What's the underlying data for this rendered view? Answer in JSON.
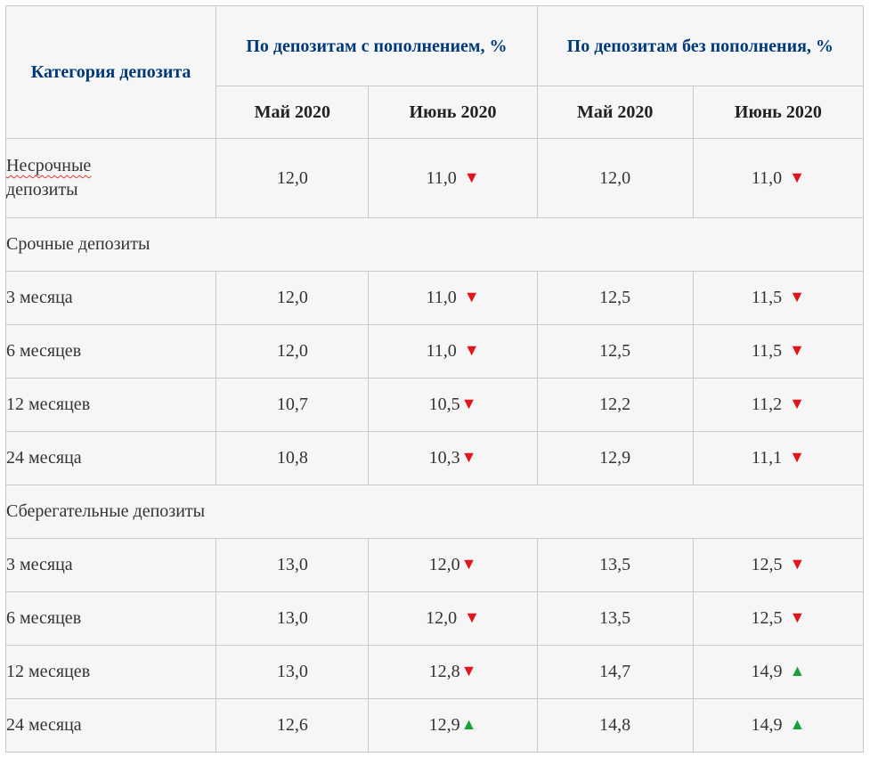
{
  "header": {
    "category": "Категория депозита",
    "group_with": "По депозитам с пополнением, %",
    "group_without": "По депозитам без пополнения, %",
    "may": "Май 2020",
    "june": "Июнь 2020"
  },
  "arrows": {
    "down": "▼",
    "up": "▲"
  },
  "colors": {
    "header_text": "#003a7a",
    "down": "#e3141a",
    "up": "#17a33c",
    "cell_bg": "#f6f6f6",
    "border": "#c9c9c9"
  },
  "rows": [
    {
      "label_line1": "Несрочные",
      "label_line2": "депозиты",
      "with_may": "12,0",
      "with_june": "11,0",
      "with_june_dir": "down",
      "without_may": "12,0",
      "without_june": "11,0",
      "without_june_dir": "down"
    },
    {
      "section": "Срочные депозиты"
    },
    {
      "label": "3 месяца",
      "with_may": "12,0",
      "with_june": "11,0",
      "with_june_dir": "down",
      "without_may": "12,5",
      "without_june": "11,5",
      "without_june_dir": "down"
    },
    {
      "label": "6 месяцев",
      "with_may": "12,0",
      "with_june": "11,0",
      "with_june_dir": "down",
      "without_may": "12,5",
      "without_june": "11,5",
      "without_june_dir": "down"
    },
    {
      "label": "12 месяцев",
      "with_may": "10,7",
      "with_june": "10,5",
      "with_june_dir": "down",
      "without_may": "12,2",
      "without_june": "11,2",
      "without_june_dir": "down"
    },
    {
      "label": "24 месяца",
      "with_may": "10,8",
      "with_june": "10,3",
      "with_june_dir": "down",
      "without_may": "12,9",
      "without_june": "11,1",
      "without_june_dir": "down"
    },
    {
      "section": "Сберегательные депозиты"
    },
    {
      "label": "3 месяца",
      "with_may": "13,0",
      "with_june": "12,0",
      "with_june_dir": "down",
      "without_may": "13,5",
      "without_june": "12,5",
      "without_june_dir": "down"
    },
    {
      "label": "6 месяцев",
      "with_may": "13,0",
      "with_june": "12,0",
      "with_june_dir": "down",
      "without_may": "13,5",
      "without_june": "12,5",
      "without_june_dir": "down"
    },
    {
      "label": "12 месяцев",
      "with_may": "13,0",
      "with_june": "12,8",
      "with_june_dir": "down",
      "without_may": "14,7",
      "without_june": "14,9",
      "without_june_dir": "up"
    },
    {
      "label": "24 месяца",
      "with_may": "12,6",
      "with_june": "12,9",
      "with_june_dir": "up",
      "without_may": "14,8",
      "without_june": "14,9",
      "without_june_dir": "up"
    }
  ]
}
